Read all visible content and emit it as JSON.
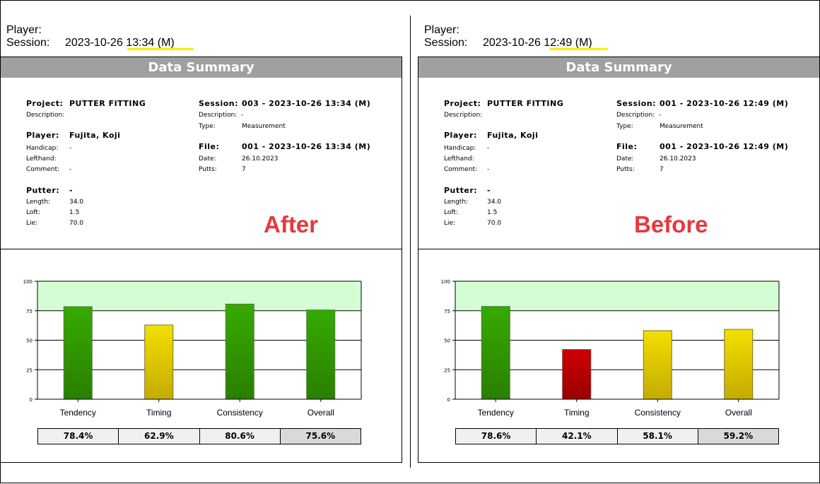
{
  "panels": [
    {
      "player_label": "Player:",
      "session_label": "Session:",
      "session_value": "2023-10-26 13:34 (M)",
      "title": "Data Summary",
      "project_label": "Project:",
      "project": "PUTTER FITTING",
      "description_label": "Description:",
      "player_name_label": "Player:",
      "player": "Fujita, Koji",
      "handicap_label": "Handicap:",
      "handicap": "-",
      "lefthand_label": "Lefthand:",
      "comment_label": "Comment:",
      "comment": "-",
      "putter_label": "Putter:",
      "putter": "-",
      "length_label": "Length:",
      "length": "34.0",
      "loft_label": "Loft:",
      "loft": "1.5",
      "lie_label": "Lie:",
      "lie": "70.0",
      "s_session_label": "Session:",
      "s_session": "003 -  2023-10-26 13:34 (M)",
      "s_desc_label": "Description:",
      "s_desc": "-",
      "type_label": "Type:",
      "type": "Measurement",
      "file_label": "File:",
      "file": "001 -  2023-10-26 13:34 (M)",
      "date_label": "Date:",
      "date": "26.10.2023",
      "putts_label": "Putts:",
      "putts": "7",
      "annotation": "After",
      "values_text": [
        "78.4%",
        "62.9%",
        "80.6%",
        "75.6%"
      ]
    },
    {
      "player_label": "Player:",
      "session_label": "Session:",
      "session_value": "2023-10-26 12:49 (M)",
      "title": "Data Summary",
      "project_label": "Project:",
      "project": "PUTTER FITTING",
      "description_label": "Description:",
      "player_name_label": "Player:",
      "player": "Fujita, Koji",
      "handicap_label": "Handicap:",
      "handicap": "-",
      "lefthand_label": "Lefthand:",
      "comment_label": "Comment:",
      "comment": "-",
      "putter_label": "Putter:",
      "putter": "-",
      "length_label": "Length:",
      "length": "34.0",
      "loft_label": "Loft:",
      "loft": "1.5",
      "lie_label": "Lie:",
      "lie": "70.0",
      "s_session_label": "Session:",
      "s_session": "001 -  2023-10-26 12:49 (M)",
      "s_desc_label": "Description:",
      "s_desc": "-",
      "type_label": "Type:",
      "type": "Measurement",
      "file_label": "File:",
      "file": "001 -  2023-10-26 12:49 (M)",
      "date_label": "Date:",
      "date": "26.10.2023",
      "putts_label": "Putts:",
      "putts": "7",
      "annotation": "Before",
      "values_text": [
        "78.6%",
        "42.1%",
        "58.1%",
        "59.2%"
      ]
    }
  ],
  "chart_data": [
    {
      "type": "bar",
      "title": "After",
      "categories": [
        "Tendency",
        "Timing",
        "Consistency",
        "Overall"
      ],
      "values": [
        78.4,
        62.9,
        80.6,
        75.6
      ],
      "colors": [
        "green",
        "yellow",
        "green",
        "green"
      ],
      "ylim": [
        0,
        100
      ],
      "yticks": [
        "0",
        "25",
        "50",
        "75",
        "100"
      ],
      "target_band": [
        75,
        100
      ]
    },
    {
      "type": "bar",
      "title": "Before",
      "categories": [
        "Tendency",
        "Timing",
        "Consistency",
        "Overall"
      ],
      "values": [
        78.6,
        42.1,
        58.1,
        59.2
      ],
      "colors": [
        "green",
        "red",
        "yellow",
        "yellow"
      ],
      "ylim": [
        0,
        100
      ],
      "yticks": [
        "0",
        "25",
        "50",
        "75",
        "100"
      ],
      "target_band": [
        75,
        100
      ]
    }
  ]
}
